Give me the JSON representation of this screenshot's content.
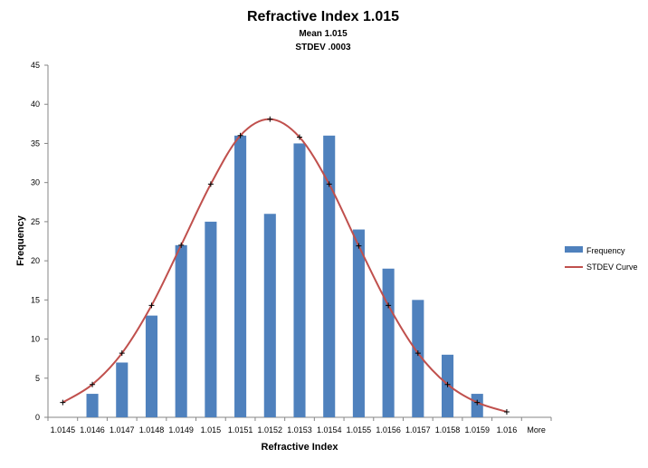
{
  "chart_data": {
    "type": "bar",
    "title": "Refractive Index 1.015",
    "subtitle_lines": [
      "Mean  1.015",
      "STDEV .0003"
    ],
    "xlabel": "Refractive Index",
    "ylabel": "Frequency",
    "ylim": [
      0,
      45
    ],
    "y_ticks": [
      0,
      5,
      10,
      15,
      20,
      25,
      30,
      35,
      40,
      45
    ],
    "categories": [
      "1.0145",
      "1.0146",
      "1.0147",
      "1.0148",
      "1.0149",
      "1.015",
      "1.0151",
      "1.0152",
      "1.0153",
      "1.0154",
      "1.0155",
      "1.0156",
      "1.0157",
      "1.0158",
      "1.0159",
      "1.016",
      "More"
    ],
    "grid": false,
    "legend_position": "right",
    "series": [
      {
        "name": "Frequency",
        "kind": "bar",
        "color": "#4f81bd",
        "values": [
          0,
          3,
          7,
          13,
          22,
          25,
          36,
          26,
          35,
          36,
          24,
          19,
          15,
          8,
          3,
          0,
          0
        ]
      },
      {
        "name": "STDEV Curve",
        "kind": "line",
        "color": "#c0504d",
        "values": [
          1.9,
          4.2,
          8.2,
          14.3,
          22.0,
          29.8,
          36.0,
          38.1,
          35.8,
          29.8,
          21.9,
          14.3,
          8.2,
          4.2,
          1.9,
          0.7,
          null
        ]
      }
    ]
  }
}
